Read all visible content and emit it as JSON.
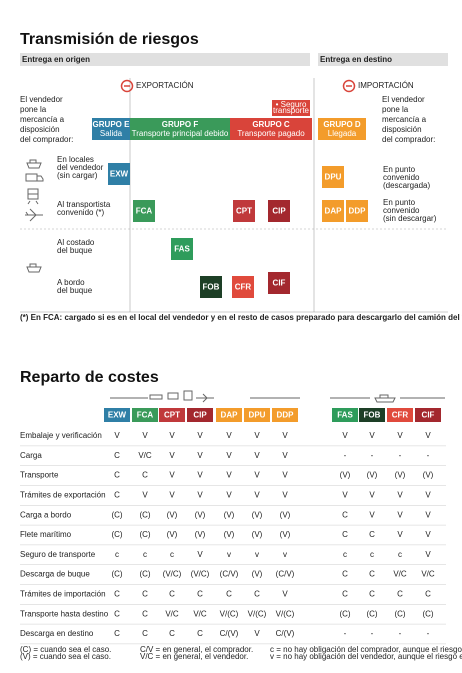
{
  "risks": {
    "title": "Transmisión de riesgos",
    "origin": "Entrega en origen",
    "destination": "Entrega en destino",
    "export": "EXPORTACIÓN",
    "import": "IMPORTACIÓN",
    "seller_left": [
      "El vendedor",
      "pone la",
      "mercancía a",
      "disposición",
      "del comprador:"
    ],
    "seller_right": [
      "El vendedor",
      "pone la",
      "mercancía a",
      "disposición",
      "del comprador:"
    ],
    "groups": [
      {
        "name": "GRUPO E",
        "sub": "Salida",
        "color": "#2f7fa6"
      },
      {
        "name": "GRUPO F",
        "sub": "Transporte principal debido",
        "color": "#3a9a5a"
      },
      {
        "name": "GRUPO C",
        "sub": "Transporte pagado",
        "color": "#d9443a"
      },
      {
        "name": "GRUPO D",
        "sub": "Llegada",
        "color": "#f39c2b"
      }
    ],
    "insurance": [
      "• Seguro",
      "transporte"
    ],
    "rows_left": [
      [
        "En locales",
        "del vendedor",
        "(sin cargar)"
      ],
      [
        "Al transportista",
        "convenido (*)"
      ],
      [
        "Al costado",
        "del buque"
      ],
      [
        "A bordo",
        "del buque"
      ]
    ],
    "rows_right": [
      [
        "En punto",
        "convenido",
        "(descargada)"
      ],
      [
        "En punto",
        "convenido",
        "(sin descargar)"
      ]
    ],
    "terms": [
      {
        "label": "EXW",
        "color": "#2f7fa6"
      },
      {
        "label": "FCA",
        "color": "#3a9a5a"
      },
      {
        "label": "CPT",
        "color": "#c0393b"
      },
      {
        "label": "CIP",
        "color": "#a3282e"
      },
      {
        "label": "DPU",
        "color": "#f39c2b"
      },
      {
        "label": "DAP",
        "color": "#f39c2b"
      },
      {
        "label": "DDP",
        "color": "#f39c2b"
      },
      {
        "label": "FAS",
        "color": "#2e9c5b"
      },
      {
        "label": "FOB",
        "color": "#1d3f26"
      },
      {
        "label": "CFR",
        "color": "#e04a3c"
      },
      {
        "label": "CIF",
        "color": "#a3282e"
      }
    ],
    "footnote": "(*) En FCA: cargado si es en el local del vendedor y en el resto de casos preparado para descargarlo del camión del vendedor."
  },
  "costs": {
    "title": "Reparto de costes",
    "columns": [
      {
        "label": "EXW",
        "color": "#2f7fa6"
      },
      {
        "label": "FCA",
        "color": "#3a9a5a"
      },
      {
        "label": "CPT",
        "color": "#c0393b"
      },
      {
        "label": "CIP",
        "color": "#a3282e"
      },
      {
        "label": "DAP",
        "color": "#f39c2b"
      },
      {
        "label": "DPU",
        "color": "#f39c2b"
      },
      {
        "label": "DDP",
        "color": "#f39c2b"
      },
      {
        "label": "FAS",
        "color": "#2e9c5b"
      },
      {
        "label": "FOB",
        "color": "#1d3f26"
      },
      {
        "label": "CFR",
        "color": "#e04a3c"
      },
      {
        "label": "CIF",
        "color": "#a3282e"
      }
    ],
    "rows": [
      {
        "label": "Embalaje y verificación",
        "values": [
          "V",
          "V",
          "V",
          "V",
          "V",
          "V",
          "V",
          "V",
          "V",
          "V",
          "V"
        ]
      },
      {
        "label": "Carga",
        "values": [
          "C",
          "V/C",
          "V",
          "V",
          "V",
          "V",
          "V",
          "-",
          "-",
          "-",
          "-"
        ]
      },
      {
        "label": "Transporte",
        "values": [
          "C",
          "C",
          "V",
          "V",
          "V",
          "V",
          "V",
          "(V)",
          "(V)",
          "(V)",
          "(V)"
        ]
      },
      {
        "label": "Trámites de exportación",
        "values": [
          "C",
          "V",
          "V",
          "V",
          "V",
          "V",
          "V",
          "V",
          "V",
          "V",
          "V"
        ]
      },
      {
        "label": "Carga a bordo",
        "values": [
          "(C)",
          "(C)",
          "(V)",
          "(V)",
          "(V)",
          "(V)",
          "(V)",
          "C",
          "V",
          "V",
          "V"
        ]
      },
      {
        "label": "Flete marítimo",
        "values": [
          "(C)",
          "(C)",
          "(V)",
          "(V)",
          "(V)",
          "(V)",
          "(V)",
          "C",
          "C",
          "V",
          "V"
        ]
      },
      {
        "label": "Seguro de transporte",
        "values": [
          "c",
          "c",
          "c",
          "V",
          "v",
          "v",
          "v",
          "c",
          "c",
          "c",
          "V"
        ]
      },
      {
        "label": "Descarga de buque",
        "values": [
          "(C)",
          "(C)",
          "(V/C)",
          "(V/C)",
          "(C/V)",
          "(V)",
          "(C/V)",
          "C",
          "C",
          "V/C",
          "V/C"
        ]
      },
      {
        "label": "Trámites de importación",
        "values": [
          "C",
          "C",
          "C",
          "C",
          "C",
          "C",
          "V",
          "C",
          "C",
          "C",
          "C"
        ]
      },
      {
        "label": "Transporte hasta destino",
        "values": [
          "C",
          "C",
          "V/C",
          "V/C",
          "V/(C)",
          "V/(C)",
          "V/(C)",
          "(C)",
          "(C)",
          "(C)",
          "(C)"
        ]
      },
      {
        "label": "Descarga en destino",
        "values": [
          "C",
          "C",
          "C",
          "C",
          "C/(V)",
          "V",
          "C/(V)",
          "-",
          "-",
          "-",
          "-"
        ]
      }
    ],
    "legend": [
      [
        "(C) = cuando sea el caso.",
        "(V) = cuando sea el caso."
      ],
      [
        "C/V = en general, el comprador.",
        "V/C = en general, el vendedor."
      ],
      [
        "c = no hay obligación del comprador, aunque el riesgo es suyo.",
        "v = no hay obligación del vendedor, aunque el riesgo es suyo."
      ]
    ]
  }
}
